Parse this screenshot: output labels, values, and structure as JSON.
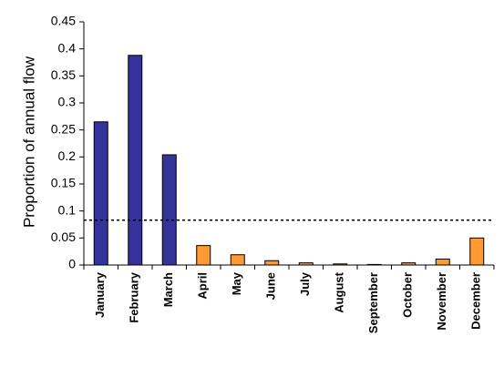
{
  "chart_data": {
    "type": "bar",
    "ylabel": "Proportion of annual flow",
    "xlabel": "",
    "ylim": [
      0,
      0.45
    ],
    "yticks": [
      0,
      0.05,
      0.1,
      0.15,
      0.2,
      0.25,
      0.3,
      0.35,
      0.4,
      0.45
    ],
    "ytick_labels": [
      "0",
      "0.05",
      "0.1",
      "0.15",
      "0.2",
      "0.25",
      "0.3",
      "0.35",
      "0.4",
      "0.45"
    ],
    "categories": [
      "January",
      "February",
      "March",
      "April",
      "May",
      "June",
      "July",
      "August",
      "September",
      "October",
      "November",
      "December"
    ],
    "values": [
      0.265,
      0.388,
      0.204,
      0.036,
      0.019,
      0.008,
      0.004,
      0.002,
      0.001,
      0.004,
      0.011,
      0.05
    ],
    "bar_colors": [
      "#333399",
      "#333399",
      "#333399",
      "#ff9933",
      "#ff9933",
      "#ff9933",
      "#ff9933",
      "#ff9933",
      "#ff9933",
      "#ff9933",
      "#ff9933",
      "#ff9933"
    ],
    "reference_line": {
      "value": 0.083,
      "style": "dotted",
      "color": "#000000"
    },
    "grid": false,
    "legend": "none"
  }
}
